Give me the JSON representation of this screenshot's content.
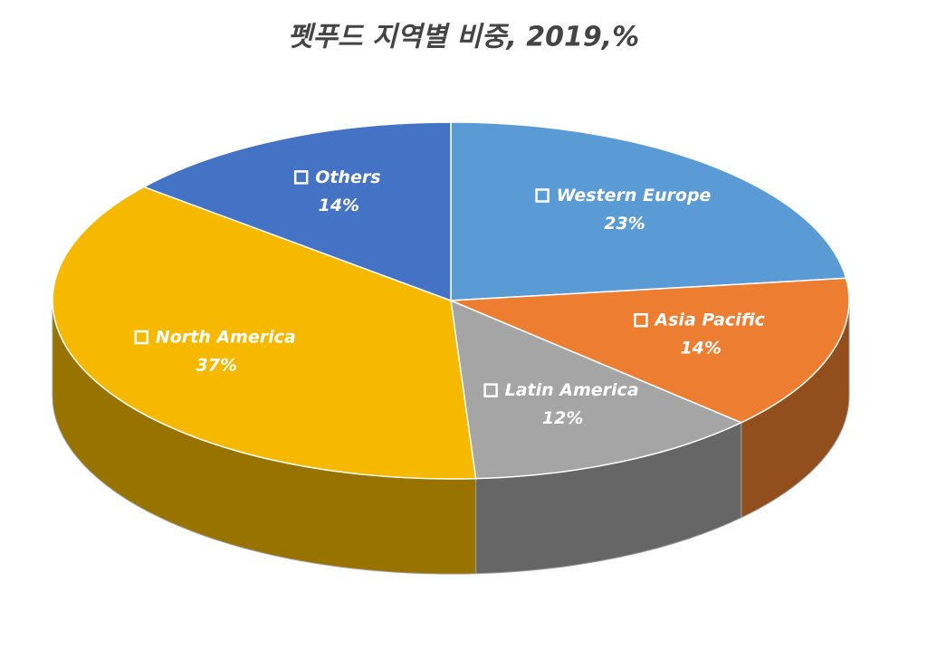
{
  "chart_data": {
    "type": "pie",
    "title": "펫푸드 지역별 비중, 2019,%",
    "categories": [
      "Western Europe",
      "Asia Pacific",
      "Latin America",
      "North America",
      "Others"
    ],
    "values": [
      23,
      14,
      12,
      37,
      14
    ],
    "value_labels": [
      "23%",
      "14%",
      "12%",
      "37%",
      "14%"
    ],
    "colors": [
      "#5b9bd5",
      "#ed7d31",
      "#a5a5a5",
      "#f7b900",
      "#4472c4"
    ]
  }
}
